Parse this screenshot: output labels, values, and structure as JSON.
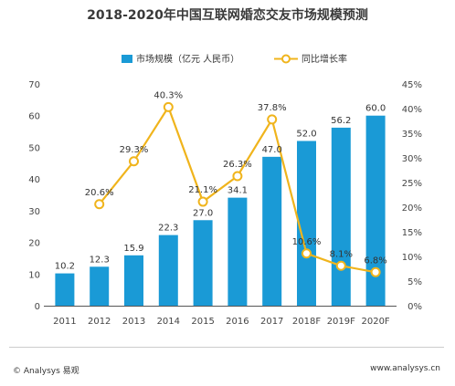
{
  "chart_data": {
    "type": "bar",
    "title": "2018-2020年中国互联网婚恋交友市场规模预测",
    "categories": [
      "2011",
      "2012",
      "2013",
      "2014",
      "2015",
      "2016",
      "2017",
      "2018F",
      "2019F",
      "2020F"
    ],
    "series": [
      {
        "name": "市场规模（亿元 人民币）",
        "type": "bar",
        "axis": "left",
        "values": [
          10.2,
          12.3,
          15.9,
          22.3,
          27.0,
          34.1,
          47.0,
          52.0,
          56.2,
          60.0
        ],
        "labels": [
          "10.2",
          "12.3",
          "15.9",
          "22.3",
          "27.0",
          "34.1",
          "47.0",
          "52.0",
          "56.2",
          "60.0"
        ],
        "color": "#1a9ad6"
      },
      {
        "name": "同比增长率",
        "type": "line",
        "axis": "right",
        "values": [
          null,
          20.6,
          29.3,
          40.3,
          21.1,
          26.3,
          37.8,
          10.6,
          8.1,
          6.8
        ],
        "labels": [
          "",
          "20.6%",
          "29.3%",
          "40.3%",
          "21.1%",
          "26.3%",
          "37.8%",
          "10.6%",
          "8.1%",
          "6.8%"
        ],
        "color": "#f0b41c"
      }
    ],
    "ylim_left": [
      0,
      70
    ],
    "yticks_left": [
      "0",
      "10",
      "20",
      "30",
      "40",
      "50",
      "60",
      "70"
    ],
    "ylim_right": [
      0,
      45
    ],
    "yticks_right": [
      "0%",
      "5%",
      "10%",
      "15%",
      "20%",
      "25%",
      "30%",
      "35%",
      "40%",
      "45%"
    ],
    "legend_position": "top-center",
    "grid": false
  },
  "footer": {
    "copyright": "© Analysys 易观",
    "website": "www.analysys.cn"
  }
}
